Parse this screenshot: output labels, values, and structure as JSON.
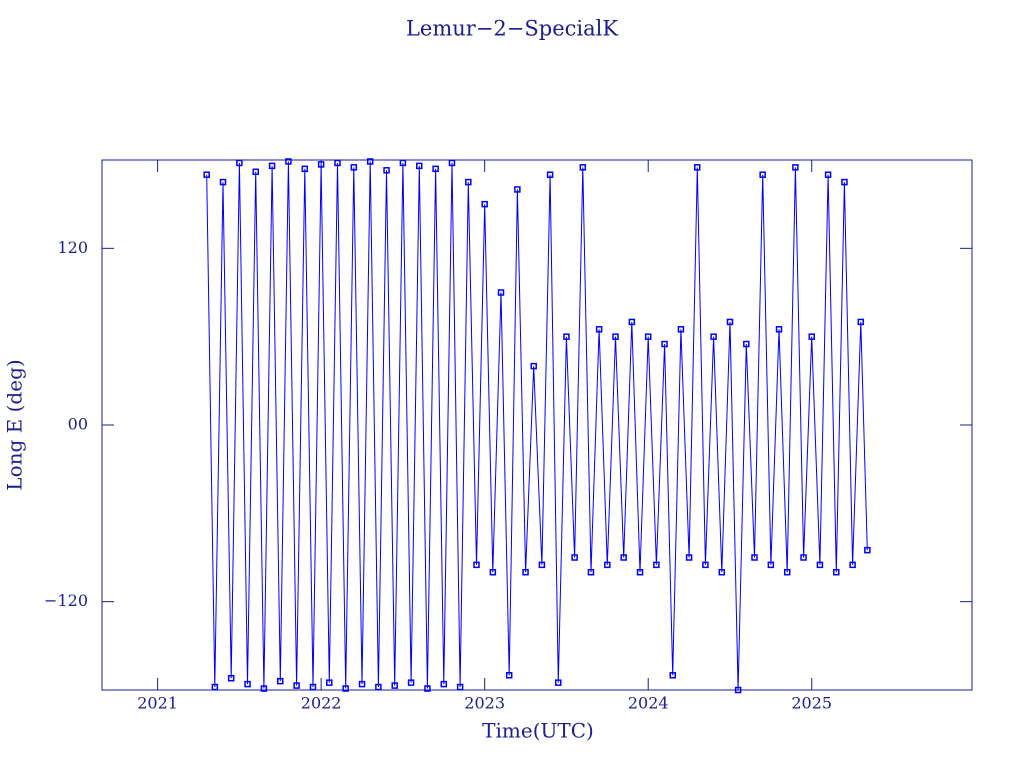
{
  "chart_data": {
    "type": "line",
    "title": "Lemur−2−SpecialK",
    "x_label": "Time(UTC)",
    "y_label": "Long E (deg)",
    "xlim": [
      2020.66,
      2025.98
    ],
    "ylim": [
      -180,
      180
    ],
    "xticks": [
      2021,
      2022,
      2023,
      2024,
      2025
    ],
    "yticks": [
      {
        "value": -120,
        "label": "−120"
      },
      {
        "value": 0,
        "label": "00"
      },
      120
    ],
    "x": [
      2021.3,
      2021.35,
      2021.4,
      2021.45,
      2021.5,
      2021.55,
      2021.6,
      2021.65,
      2021.7,
      2021.75,
      2021.8,
      2021.85,
      2021.9,
      2021.95,
      2022.0,
      2022.05,
      2022.1,
      2022.15,
      2022.2,
      2022.25,
      2022.3,
      2022.35,
      2022.4,
      2022.45,
      2022.5,
      2022.55,
      2022.6,
      2022.65,
      2022.7,
      2022.75,
      2022.8,
      2022.85,
      2022.9,
      2022.95,
      2023.0,
      2023.05,
      2023.1,
      2023.15,
      2023.2,
      2023.25,
      2023.3,
      2023.35,
      2023.4,
      2023.45,
      2023.5,
      2023.55,
      2023.6,
      2023.65,
      2023.7,
      2023.75,
      2023.8,
      2023.85,
      2023.9,
      2023.95,
      2024.0,
      2024.05,
      2024.1,
      2024.15,
      2024.2,
      2024.25,
      2024.3,
      2024.35,
      2024.4,
      2024.45,
      2024.5,
      2024.55,
      2024.6,
      2024.65,
      2024.7,
      2024.75,
      2024.8,
      2024.85,
      2024.9,
      2024.95,
      2025.0,
      2025.05,
      2025.1,
      2025.15,
      2025.2,
      2025.25,
      2025.3,
      2025.34
    ],
    "series": [
      {
        "color": "#0000ff",
        "values": [
          170,
          -178,
          165,
          -172,
          178,
          -176,
          172,
          -179,
          176,
          -174,
          179,
          -177,
          174,
          -178,
          177,
          -175,
          178,
          -179,
          175,
          -176,
          179,
          -178,
          173,
          -177,
          178,
          -175,
          176,
          -179,
          174,
          -176,
          178,
          -178,
          165,
          -95,
          150,
          -100,
          90,
          -170,
          160,
          -100,
          40,
          -95,
          170,
          -175,
          60,
          -90,
          175,
          -100,
          65,
          -95,
          60,
          -90,
          70,
          -100,
          60,
          -95,
          55,
          -170,
          65,
          -90,
          175,
          -95,
          60,
          -100,
          70,
          -180,
          55,
          -90,
          170,
          -95,
          65,
          -100,
          175,
          -90,
          60,
          -95,
          170,
          -100,
          165,
          -95,
          70,
          -85
        ]
      }
    ]
  }
}
